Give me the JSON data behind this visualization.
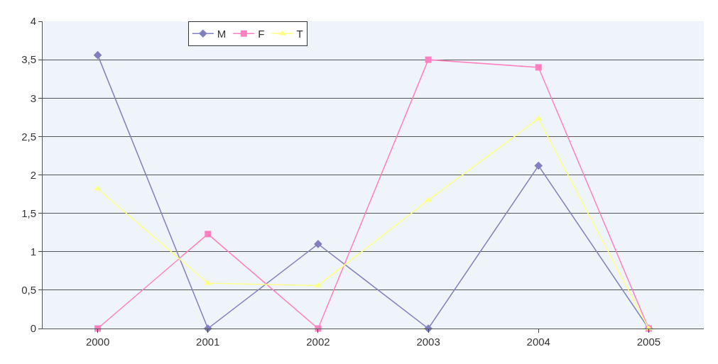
{
  "chart_data": {
    "type": "line",
    "categories": [
      "2000",
      "2001",
      "2002",
      "2003",
      "2004",
      "2005"
    ],
    "series": [
      {
        "name": "M",
        "color": "#8080c0",
        "marker": "diamond",
        "values": [
          3.56,
          0,
          1.1,
          0,
          2.12,
          0
        ]
      },
      {
        "name": "F",
        "color": "#ff80c0",
        "marker": "square",
        "values": [
          0,
          1.23,
          0,
          3.5,
          3.4,
          0
        ]
      },
      {
        "name": "T",
        "color": "#ffff80",
        "marker": "triangle",
        "values": [
          1.82,
          0.59,
          0.56,
          1.67,
          2.73,
          0
        ]
      }
    ],
    "ylim": [
      0,
      4
    ],
    "yticks": [
      0,
      {
        "value": 0.5,
        "label": "0,5"
      },
      1,
      {
        "value": 1.5,
        "label": "1,5"
      },
      2,
      {
        "value": 2.5,
        "label": "2,5"
      },
      3,
      {
        "value": 3.5,
        "label": "3,5"
      },
      4
    ],
    "grid": "y",
    "legend": "top"
  }
}
